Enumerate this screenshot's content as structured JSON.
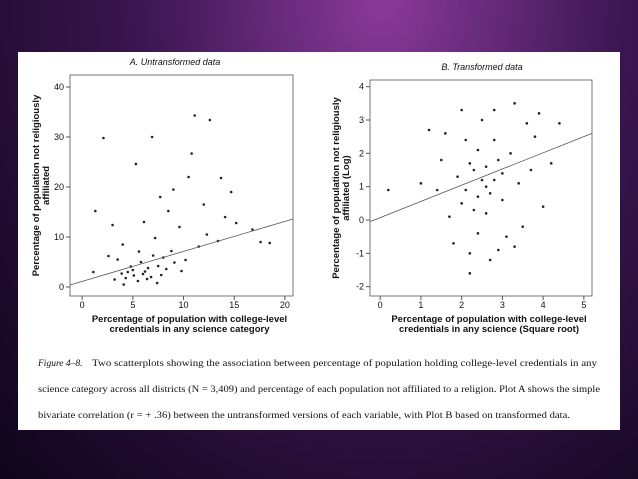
{
  "chart_data": [
    {
      "type": "scatter",
      "title": "A. Untransformed data",
      "ylabel": [
        "Percentage of population not religiously",
        "affiliated"
      ],
      "xlabel": [
        "Percentage of population with college-level",
        "credentials in any science category"
      ],
      "xlim": [
        -1.2,
        20.8
      ],
      "ylim": [
        -1.8,
        42.4
      ],
      "xticks": [
        0,
        5,
        10,
        15,
        20
      ],
      "yticks": [
        0,
        10,
        20,
        30,
        40
      ],
      "color": "#222222",
      "x": [
        5.1,
        6.2,
        4.3,
        7.5,
        5.8,
        3.9,
        6.8,
        8.3,
        4.8,
        5.5,
        7.0,
        6.5,
        3.2,
        9.1,
        5.0,
        6.0,
        4.5,
        7.8,
        8.8,
        10.2,
        11.5,
        12.3,
        9.6,
        13.4,
        14.1,
        15.2,
        16.8,
        7.2,
        8.5,
        6.1,
        5.3,
        2.1,
        6.9,
        11.1,
        12.6,
        13.7,
        10.5,
        9.0,
        4.0,
        2.6,
        1.1,
        3.5,
        17.6,
        18.5,
        7.4,
        6.4,
        5.6,
        8.0,
        4.1,
        9.8,
        12.0,
        14.7,
        10.8,
        7.7,
        3.0,
        1.3
      ],
      "values": [
        2.3,
        3.1,
        1.8,
        4.2,
        5.0,
        2.7,
        2.0,
        3.6,
        4.1,
        1.2,
        6.3,
        3.8,
        1.5,
        4.9,
        3.4,
        2.6,
        3.0,
        2.4,
        7.2,
        5.4,
        8.1,
        10.5,
        12.0,
        9.2,
        14.0,
        12.8,
        11.5,
        9.8,
        15.2,
        13.0,
        24.6,
        29.8,
        30.0,
        34.3,
        33.4,
        21.8,
        22.0,
        19.5,
        8.5,
        6.2,
        3.0,
        5.5,
        9.0,
        8.8,
        0.8,
        1.6,
        7.1,
        5.9,
        0.5,
        3.2,
        16.5,
        19.0,
        26.7,
        18.0,
        12.4,
        15.2
      ],
      "trend": {
        "x": [
          -1.2,
          20.8
        ],
        "y": [
          0.4,
          13.6
        ]
      }
    },
    {
      "type": "scatter",
      "title": "B. Transformed data",
      "ylabel": [
        "Percentage of population not religiously",
        "affiliated (Log)"
      ],
      "xlabel": [
        "Percentage of population with college-level",
        "credentials in any science (Square root)"
      ],
      "xlim": [
        -0.25,
        5.2
      ],
      "ylim": [
        -2.28,
        4.2
      ],
      "xticks": [
        0,
        1,
        2,
        3,
        4,
        5
      ],
      "yticks": [
        -2,
        -1,
        0,
        1,
        2,
        3,
        4
      ],
      "color": "#222222",
      "x": [
        2.5,
        2.3,
        2.7,
        2.9,
        2.1,
        2.4,
        2.6,
        3.0,
        2.2,
        2.8,
        2.0,
        3.2,
        2.6,
        1.9,
        3.4,
        2.4,
        3.6,
        1.6,
        2.0,
        3.3,
        3.1,
        2.7,
        2.2,
        1.4,
        1.0,
        0.2,
        1.2,
        3.8,
        4.2,
        4.0,
        3.5,
        2.9,
        2.5,
        1.7,
        1.8,
        2.3,
        2.8,
        3.0,
        2.1,
        2.6,
        3.7,
        2.4,
        1.5,
        4.4,
        3.9,
        2.8,
        2.2,
        3.3
      ],
      "values": [
        1.2,
        1.5,
        0.8,
        1.8,
        0.9,
        2.1,
        1.0,
        1.4,
        1.7,
        2.4,
        0.5,
        2.0,
        0.2,
        1.3,
        1.1,
        -0.4,
        2.9,
        2.6,
        3.3,
        3.5,
        -0.5,
        -1.2,
        -1.0,
        0.9,
        1.1,
        0.9,
        2.7,
        2.5,
        1.7,
        0.4,
        -0.2,
        -0.9,
        3.0,
        0.1,
        -0.7,
        0.3,
        1.2,
        0.6,
        2.4,
        1.6,
        1.5,
        0.7,
        1.8,
        2.9,
        3.2,
        3.3,
        -1.6,
        -0.8
      ],
      "trend": {
        "x": [
          -0.25,
          5.2
        ],
        "y": [
          -0.05,
          2.6
        ]
      }
    }
  ],
  "caption": {
    "label": "Figure 4–8.",
    "lines": [
      "Two scatterplots showing the association between percentage of population holding college-level credentials in any",
      "science category across all districts (N = 3,409) and percentage of each population not affiliated to a religion.  Plot A shows the simple",
      "bivariate correlation (r = + .36) between the untransformed versions of each variable, with Plot B based on transformed data."
    ]
  }
}
